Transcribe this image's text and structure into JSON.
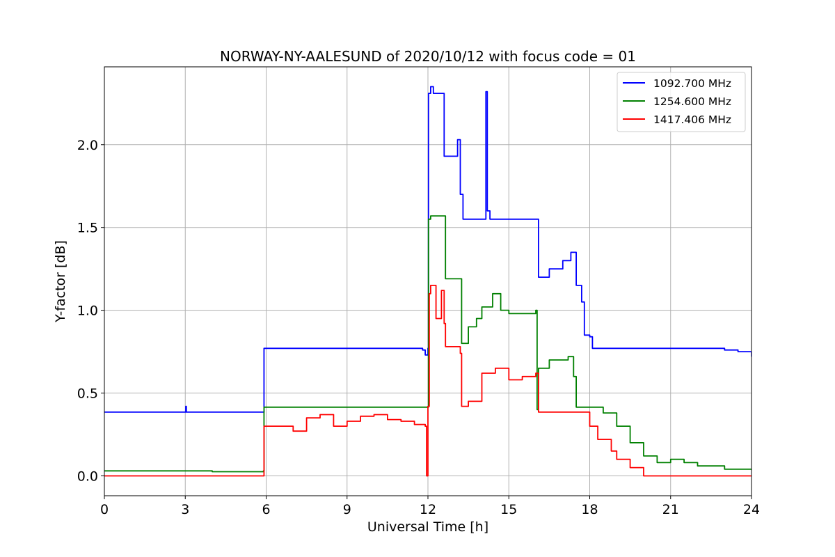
{
  "chart_data": {
    "type": "line",
    "title": "NORWAY-NY-AALESUND of 2020/10/12 with focus code = 01",
    "xlabel": "Universal Time [h]",
    "ylabel": "Y-factor [dB]",
    "xlim": [
      0,
      24
    ],
    "ylim": [
      -0.12,
      2.47
    ],
    "xticks": [
      0,
      3,
      6,
      9,
      12,
      15,
      18,
      21,
      24
    ],
    "yticks": [
      0.0,
      0.5,
      1.0,
      1.5,
      2.0
    ],
    "xtick_labels": [
      "0",
      "3",
      "6",
      "9",
      "12",
      "15",
      "18",
      "21",
      "24"
    ],
    "ytick_labels": [
      "0.0",
      "0.5",
      "1.0",
      "1.5",
      "2.0"
    ],
    "grid": true,
    "legend_position": "top-right",
    "series": [
      {
        "name": "1092.700 MHz",
        "color": "#0000ff",
        "x": [
          0,
          3.0,
          3.02,
          3.04,
          5.9,
          5.92,
          11.5,
          11.8,
          11.9,
          12.0,
          12.02,
          12.1,
          12.2,
          12.55,
          12.6,
          13.0,
          13.1,
          13.2,
          13.3,
          14.0,
          14.15,
          14.2,
          14.3,
          15.5,
          16.05,
          16.1,
          16.5,
          17.0,
          17.3,
          17.5,
          17.7,
          17.8,
          18.0,
          18.1,
          20.0,
          22.0,
          23.0,
          23.5,
          24.0
        ],
        "y": [
          0.385,
          0.385,
          0.42,
          0.385,
          0.385,
          0.77,
          0.77,
          0.76,
          0.73,
          0.77,
          2.31,
          2.35,
          2.31,
          2.31,
          1.93,
          1.93,
          2.03,
          1.7,
          1.55,
          1.55,
          2.32,
          1.6,
          1.55,
          1.55,
          1.55,
          1.2,
          1.25,
          1.3,
          1.35,
          1.15,
          1.05,
          0.85,
          0.84,
          0.77,
          0.77,
          0.77,
          0.76,
          0.75,
          0.72
        ]
      },
      {
        "name": "1254.600 MHz",
        "color": "#008000",
        "x": [
          0,
          2.0,
          4.0,
          5.9,
          5.92,
          8.0,
          10.0,
          12.0,
          12.02,
          12.1,
          12.6,
          12.65,
          13.2,
          13.25,
          13.5,
          13.8,
          14.0,
          14.4,
          14.7,
          15.0,
          15.5,
          16.0,
          16.05,
          16.1,
          16.5,
          17.0,
          17.2,
          17.4,
          17.5,
          18.0,
          18.5,
          19.0,
          19.5,
          20.0,
          20.5,
          21.0,
          21.5,
          22.0,
          23.0,
          24.0
        ],
        "y": [
          0.03,
          0.03,
          0.025,
          0.03,
          0.415,
          0.415,
          0.415,
          0.415,
          1.55,
          1.57,
          1.57,
          1.19,
          1.19,
          0.8,
          0.9,
          0.95,
          1.02,
          1.1,
          1.0,
          0.98,
          0.98,
          1.0,
          0.4,
          0.65,
          0.7,
          0.7,
          0.72,
          0.6,
          0.415,
          0.415,
          0.38,
          0.3,
          0.2,
          0.12,
          0.08,
          0.1,
          0.08,
          0.06,
          0.04,
          0.035
        ]
      },
      {
        "name": "1417.406 MHz",
        "color": "#ff0000",
        "x": [
          0,
          5.9,
          5.92,
          6.5,
          7.0,
          7.5,
          8.0,
          8.5,
          9.0,
          9.5,
          10.0,
          10.5,
          11.0,
          11.5,
          11.9,
          11.95,
          12.0,
          12.05,
          12.1,
          12.3,
          12.5,
          12.6,
          12.65,
          13.0,
          13.2,
          13.25,
          13.5,
          14.0,
          14.5,
          15.0,
          15.5,
          16.0,
          16.05,
          16.1,
          17.0,
          17.5,
          17.9,
          18.0,
          18.3,
          18.8,
          19.0,
          19.5,
          20.0,
          21.0,
          22.0,
          23.0,
          24.0
        ],
        "y": [
          0.0,
          0.0,
          0.3,
          0.3,
          0.27,
          0.35,
          0.37,
          0.3,
          0.33,
          0.36,
          0.37,
          0.34,
          0.33,
          0.31,
          0.3,
          0.0,
          0.42,
          1.1,
          1.15,
          0.95,
          1.12,
          0.92,
          0.78,
          0.78,
          0.74,
          0.42,
          0.45,
          0.62,
          0.65,
          0.58,
          0.6,
          0.62,
          0.62,
          0.385,
          0.385,
          0.385,
          0.385,
          0.3,
          0.22,
          0.15,
          0.1,
          0.05,
          0.0,
          0.0,
          0.0,
          0.0,
          0.0
        ]
      }
    ]
  }
}
